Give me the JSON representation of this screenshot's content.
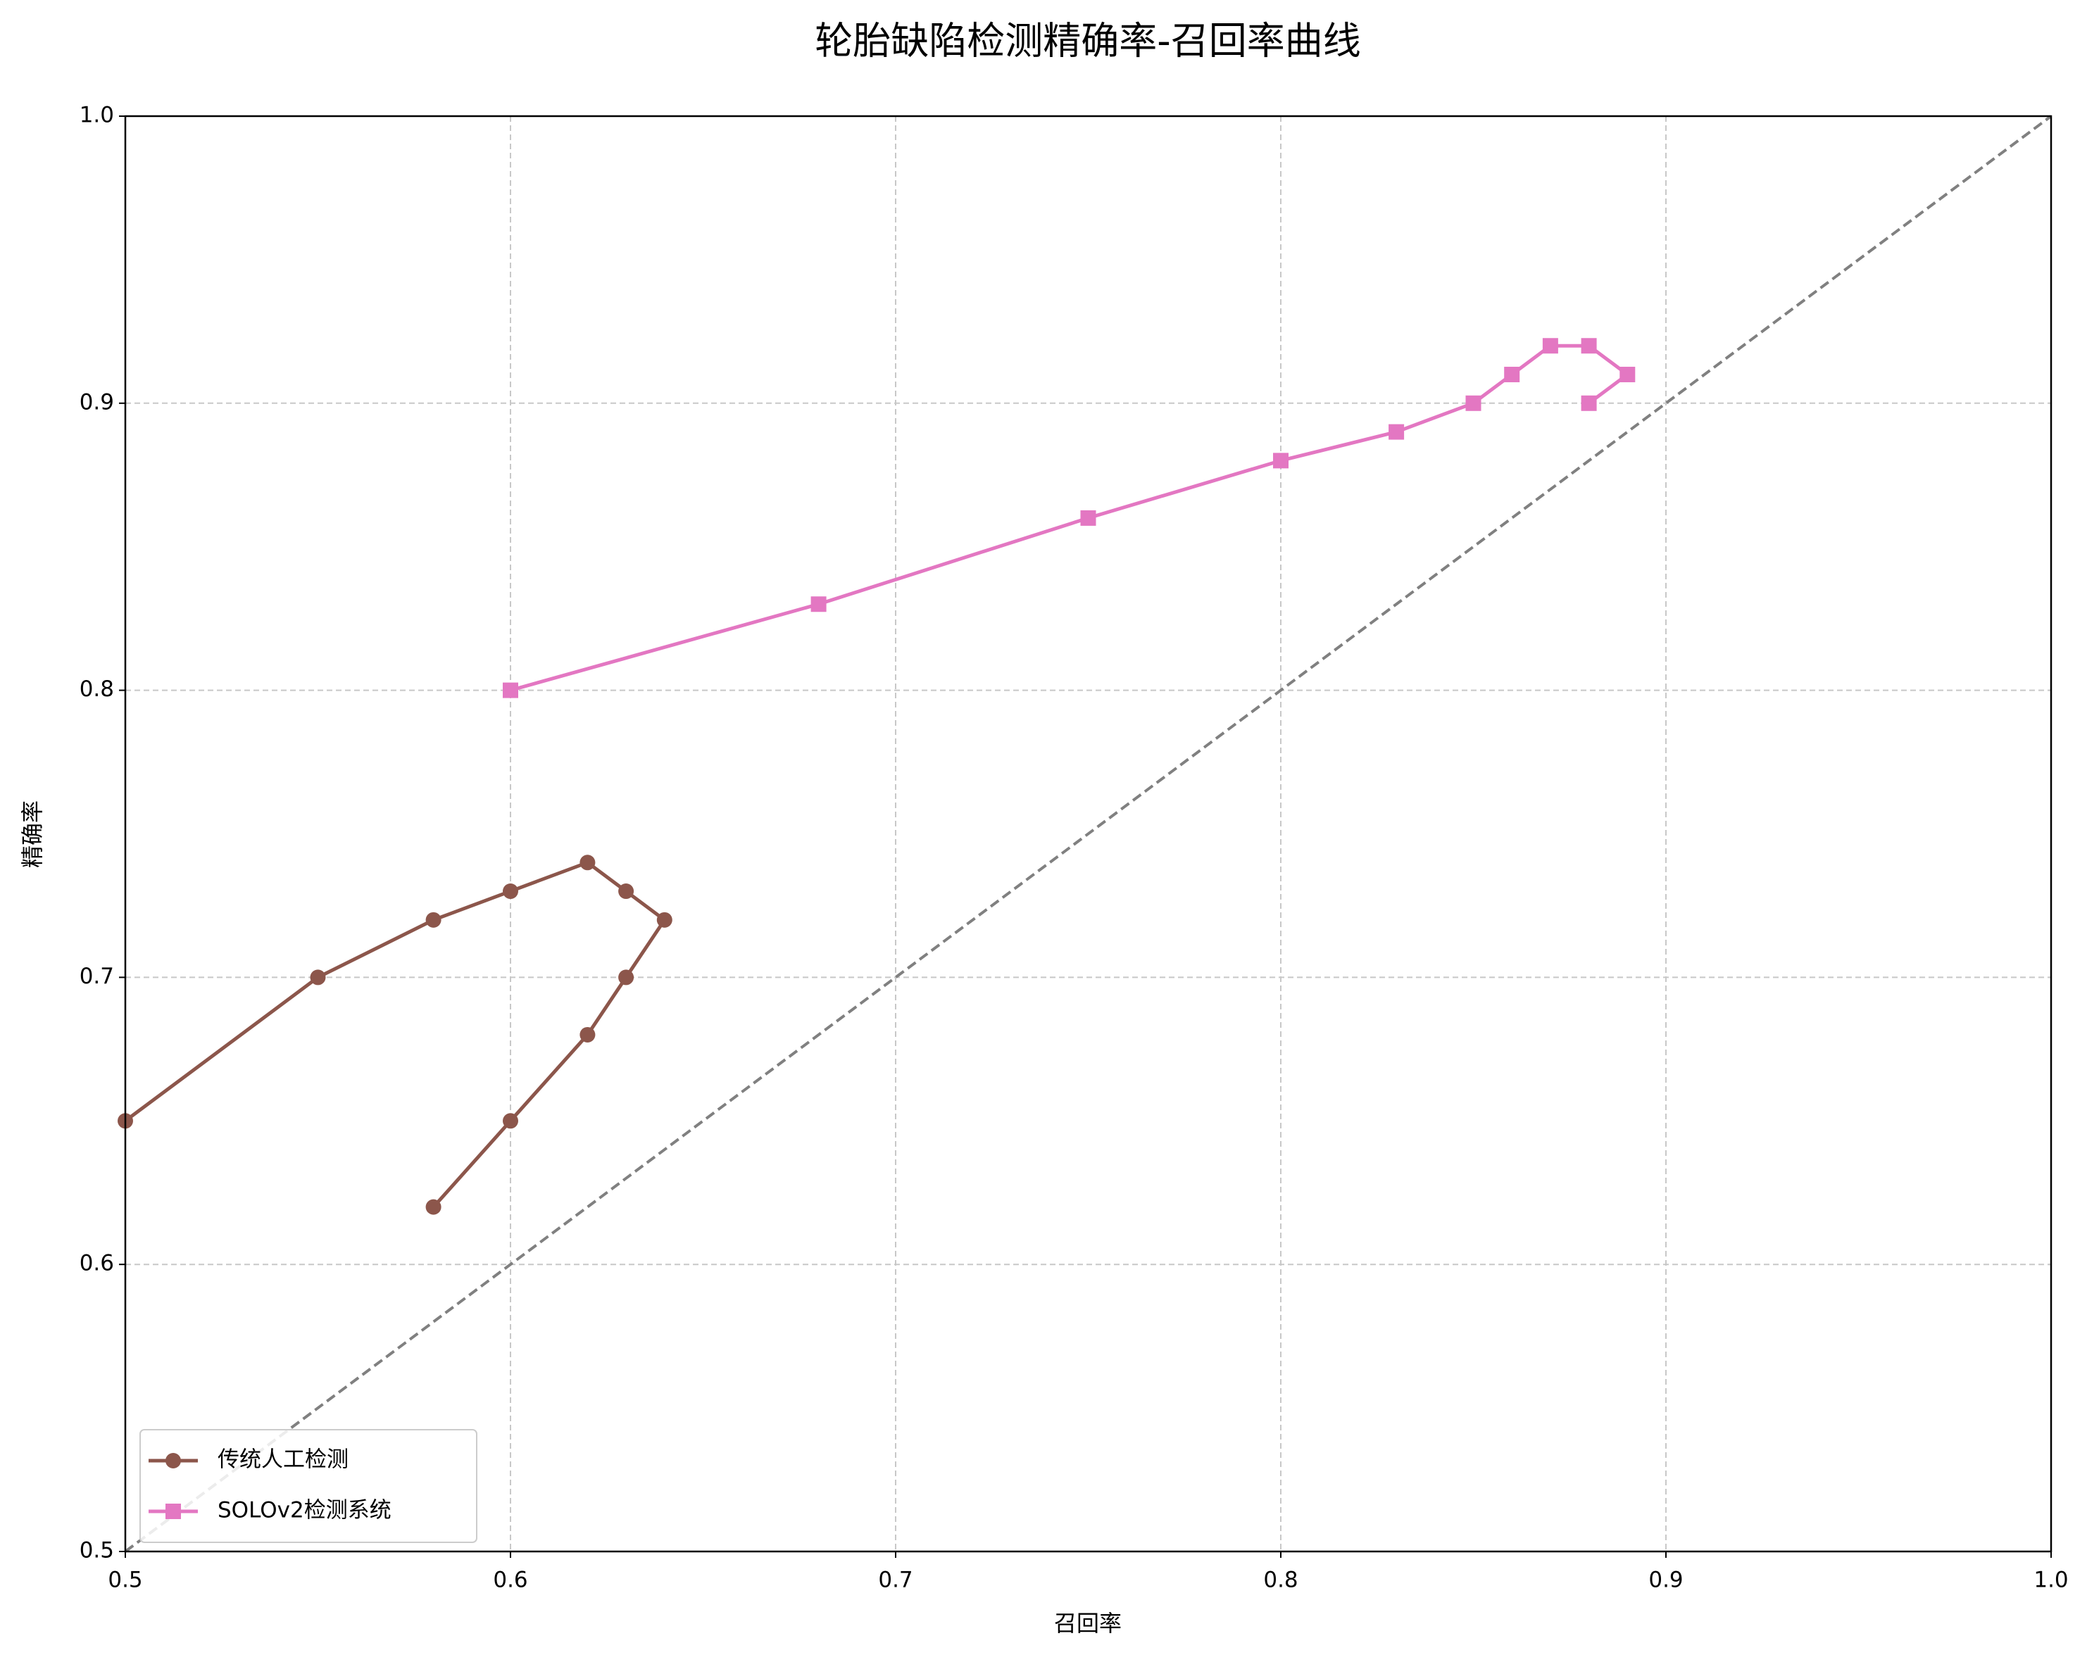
{
  "chart_data": {
    "type": "line",
    "title": "轮胎缺陷检测精确率-召回率曲线",
    "x_label": "召回率",
    "y_label": "精确率",
    "xlim": [
      0.5,
      1.0
    ],
    "ylim": [
      0.5,
      1.0
    ],
    "xticks": [
      0.5,
      0.6,
      0.7,
      0.8,
      0.9,
      {
        "value": 1.0,
        "label": "1.0"
      }
    ],
    "yticks": [
      0.5,
      0.6,
      0.7,
      0.8,
      0.9,
      {
        "value": 1.0,
        "label": "1.0"
      }
    ],
    "grid": true,
    "legend": "lower left",
    "diagonal": {
      "x": [
        0.5,
        1.0
      ],
      "values": [
        0.5,
        1.0
      ],
      "color": "#808080"
    },
    "series": [
      {
        "name": "传统人工检测",
        "color": "#8c564b",
        "marker": "circle",
        "x": [
          0.5,
          0.55,
          0.58,
          0.6,
          0.62,
          0.63,
          0.64,
          0.63,
          0.62,
          0.6,
          0.58
        ],
        "values": [
          0.65,
          0.7,
          0.72,
          0.73,
          0.74,
          0.73,
          0.72,
          0.7,
          0.68,
          0.65,
          0.62
        ]
      },
      {
        "name": "SOLOv2检测系统",
        "color": "#e377c2",
        "marker": "square",
        "x": [
          0.6,
          0.68,
          0.75,
          0.8,
          0.83,
          0.85,
          0.86,
          0.87,
          0.88,
          0.89,
          0.88
        ],
        "values": [
          0.8,
          0.83,
          0.86,
          0.88,
          0.89,
          0.9,
          0.91,
          0.92,
          0.92,
          0.91,
          0.9
        ]
      }
    ]
  }
}
